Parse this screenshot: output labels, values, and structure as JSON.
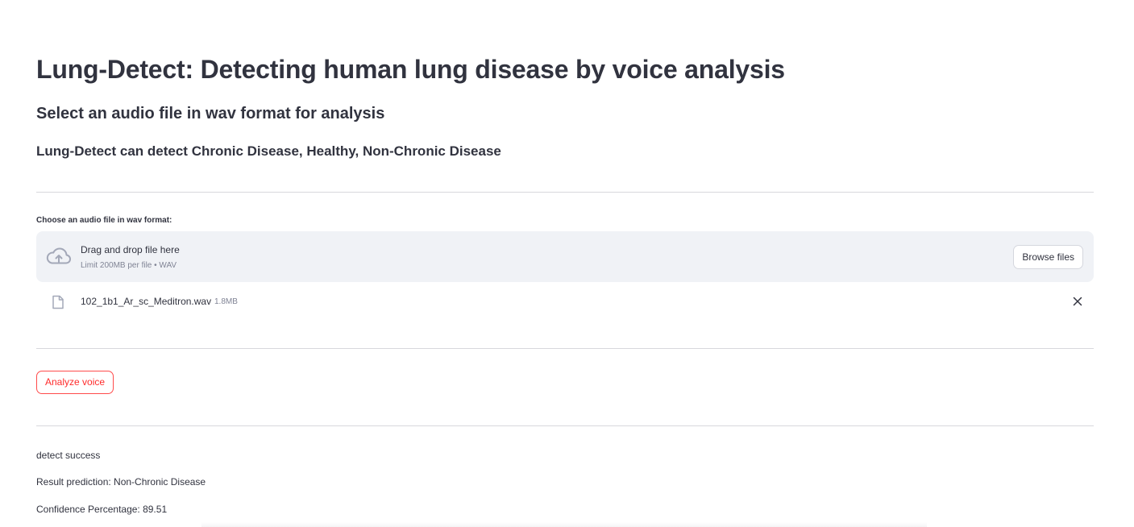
{
  "header": {
    "title": "Lung-Detect: Detecting human lung disease by voice analysis",
    "subtitle": "Select an audio file in wav format for analysis",
    "description": "Lung-Detect can detect Chronic Disease, Healthy, Non-Chronic Disease"
  },
  "uploader": {
    "label": "Choose an audio file in wav format:",
    "drop_text": "Drag and drop file here",
    "limit_text": "Limit 200MB per file • WAV",
    "browse_label": "Browse files",
    "icon": "cloud-upload-icon"
  },
  "uploaded_file": {
    "name": "102_1b1_Ar_sc_Meditron.wav",
    "size": "1.8MB",
    "icon": "file-icon"
  },
  "actions": {
    "analyze_label": "Analyze voice"
  },
  "results": {
    "status": "detect success",
    "prediction": "Result prediction: Non-Chronic Disease",
    "confidence": "Confidence Percentage: 89.51"
  },
  "colors": {
    "accent": "#ff4b4b",
    "text": "#31333f",
    "muted": "#808495",
    "dropzone_bg": "#f0f2f6"
  }
}
